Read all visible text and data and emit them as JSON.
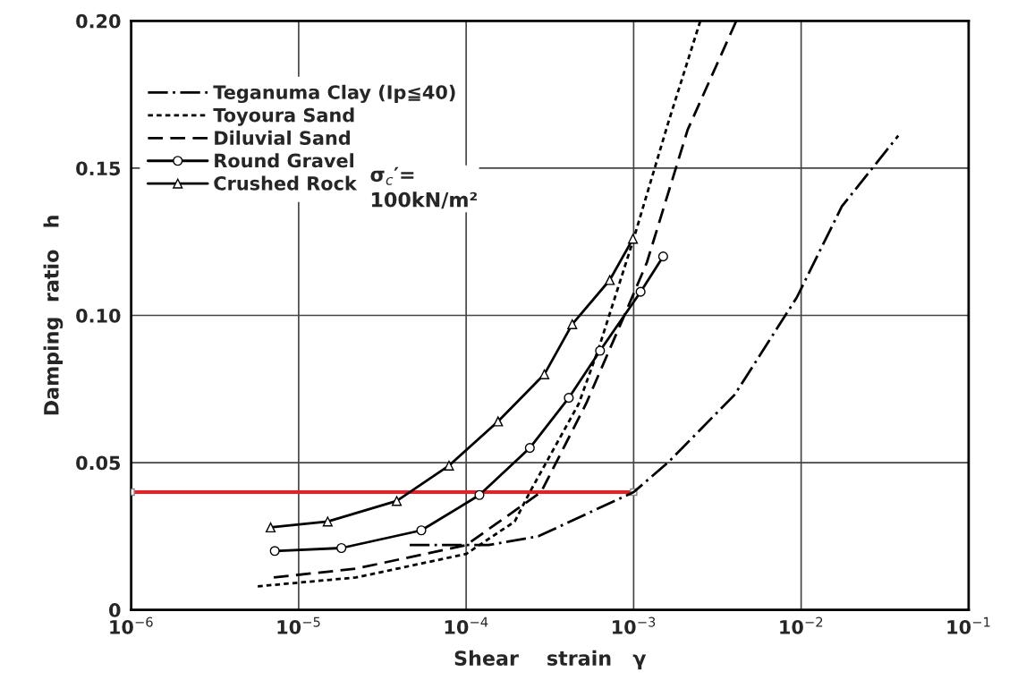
{
  "chart_data": {
    "type": "line",
    "xlabel": "Shear    strain   γ",
    "ylabel": "Damping  ratio   h",
    "log": "x",
    "grid": true,
    "legend": "top left",
    "xlim": [
      1e-06,
      0.1
    ],
    "ylim": [
      0,
      0.2
    ],
    "xticks": [
      {
        "value": 1e-06,
        "label": "10$^{−6}$"
      },
      {
        "value": 1e-05,
        "label": "10$^{−5}$"
      },
      {
        "value": 0.0001,
        "label": "10$^{−4}$"
      },
      {
        "value": 0.001,
        "label": "10$^{−3}$"
      },
      {
        "value": 0.01,
        "label": "10$^{−2}$"
      },
      {
        "value": 0.1,
        "label": "10$^{−1}$"
      }
    ],
    "yticks": [
      0,
      0.05,
      {
        "value": 0.1,
        "label": "0.10"
      },
      0.15,
      {
        "value": 0.2,
        "label": "0.20"
      }
    ],
    "series": [
      {
        "name": "Teganuma Clay (Ip≦40)",
        "color": "#000000",
        "line_style": "dashdot",
        "marker": "none",
        "x": [
          4.6e-05,
          0.000136,
          0.00027,
          0.001,
          0.0016,
          0.004,
          0.0094,
          0.0175,
          0.038
        ],
        "values": [
          0.022,
          0.022,
          0.025,
          0.04,
          0.05,
          0.073,
          0.106,
          0.137,
          0.161
        ]
      },
      {
        "name": "Toyoura Sand",
        "color": "#000000",
        "line_style": "dotted",
        "marker": "none",
        "x": [
          5.7e-06,
          2.2e-05,
          0.0001,
          0.000195,
          0.00024,
          0.00047,
          0.00062,
          0.001,
          0.0016,
          0.0025
        ],
        "values": [
          0.008,
          0.011,
          0.019,
          0.03,
          0.04,
          0.07,
          0.089,
          0.126,
          0.165,
          0.2
        ]
      },
      {
        "name": "Diluvial Sand",
        "color": "#000000",
        "line_style": "dashed",
        "marker": "none",
        "x": [
          7.1e-06,
          2.2e-05,
          0.0001,
          0.00028,
          0.00052,
          0.00085,
          0.0012,
          0.0021,
          0.0041
        ],
        "values": [
          0.011,
          0.014,
          0.022,
          0.04,
          0.07,
          0.098,
          0.118,
          0.163,
          0.2
        ]
      },
      {
        "name": "Round Gravel",
        "color": "#000000",
        "line_style": "solid",
        "marker": "circle",
        "x": [
          7.2e-06,
          1.8e-05,
          5.4e-05,
          0.00012,
          0.00024,
          0.00041,
          0.00063,
          0.0011,
          0.0015
        ],
        "values": [
          0.02,
          0.021,
          0.027,
          0.039,
          0.055,
          0.072,
          0.088,
          0.108,
          0.12
        ]
      },
      {
        "name": "Crushed Rock",
        "color": "#000000",
        "line_style": "solid",
        "marker": "triangle",
        "x": [
          6.8e-06,
          1.49e-05,
          3.85e-05,
          7.9e-05,
          0.000155,
          0.000293,
          0.00043,
          0.00072,
          0.00099
        ],
        "values": [
          0.028,
          0.03,
          0.037,
          0.049,
          0.064,
          0.08,
          0.097,
          0.112,
          0.126
        ]
      },
      {
        "color": "#ee1c25",
        "line_style": "solid",
        "marker": "square",
        "x": [
          1e-06,
          0.001
        ],
        "values": [
          0.04,
          0.04
        ]
      }
    ],
    "annotations": [
      "σ$_{c}$′=\n100kN/m²"
    ]
  }
}
